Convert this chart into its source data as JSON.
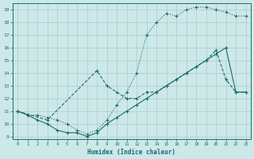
{
  "xlabel": "Humidex (Indice chaleur)",
  "xlim": [
    -0.5,
    23.5
  ],
  "ylim": [
    8.8,
    19.5
  ],
  "xticks": [
    0,
    1,
    2,
    3,
    4,
    5,
    6,
    7,
    8,
    9,
    10,
    11,
    12,
    13,
    14,
    15,
    16,
    17,
    18,
    19,
    20,
    21,
    22,
    23
  ],
  "yticks": [
    9,
    10,
    11,
    12,
    13,
    14,
    15,
    16,
    17,
    18,
    19
  ],
  "bg_color": "#cde8e8",
  "grid_color": "#a8cccc",
  "line_color": "#1a6b6b",
  "line_top_x": [
    0,
    1,
    2,
    3,
    4,
    5,
    6,
    7,
    8,
    9,
    10,
    11,
    12,
    13,
    14,
    15,
    16,
    17,
    18,
    19,
    20,
    21,
    22,
    23
  ],
  "line_top_y": [
    11.0,
    10.7,
    10.7,
    10.5,
    10.3,
    10.0,
    9.5,
    9.2,
    9.5,
    10.3,
    11.5,
    12.5,
    14.0,
    17.0,
    18.0,
    18.7,
    18.5,
    19.0,
    19.2,
    19.2,
    19.0,
    18.8,
    18.5,
    18.5
  ],
  "line_mid_x": [
    0,
    3,
    8,
    9,
    10,
    11,
    12,
    13,
    14,
    15,
    16,
    17,
    18,
    19,
    20,
    21,
    22,
    23
  ],
  "line_mid_y": [
    11.0,
    10.3,
    14.2,
    13.0,
    12.5,
    12.0,
    12.0,
    12.5,
    12.5,
    13.0,
    13.5,
    14.0,
    14.5,
    15.0,
    15.8,
    13.5,
    12.5,
    12.5
  ],
  "line_bot_x": [
    0,
    1,
    2,
    3,
    4,
    5,
    6,
    7,
    8,
    9,
    10,
    11,
    12,
    13,
    14,
    15,
    16,
    17,
    18,
    19,
    20,
    21,
    22,
    23
  ],
  "line_bot_y": [
    11.0,
    10.7,
    10.3,
    10.0,
    9.5,
    9.3,
    9.3,
    9.0,
    9.3,
    10.0,
    10.5,
    11.0,
    11.5,
    12.0,
    12.5,
    13.0,
    13.5,
    14.0,
    14.5,
    15.0,
    15.5,
    16.0,
    12.5,
    12.5
  ]
}
